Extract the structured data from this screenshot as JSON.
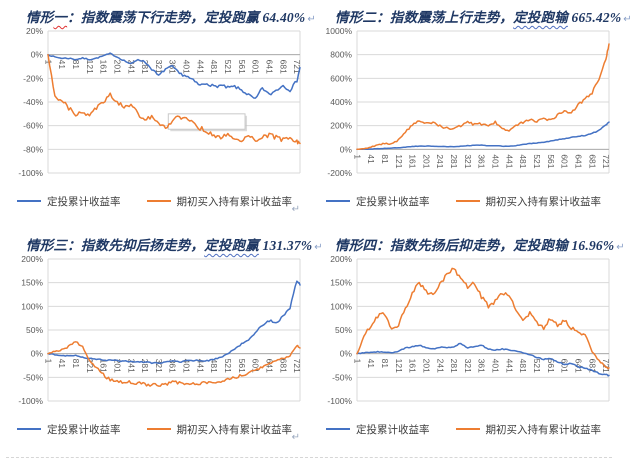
{
  "colors": {
    "dca": "#4472C4",
    "buyhold": "#ED7D31",
    "title": "#1F3864",
    "axis_text": "#595959",
    "grid": "#D9D9D9",
    "zero_axis": "#ADADAD"
  },
  "legend": {
    "series1": "定投累计收益率",
    "series2": "期初买入持有累计收益率",
    "return_mark": "↵"
  },
  "scenarios": [
    {
      "title_prefix": "情形",
      "title_marked": "一",
      "title_suffix": "：指数震荡下行走势，定投跑赢 64.40%",
      "outcome": "定投跑赢 64.40%"
    },
    {
      "title_prefix": "情形二：指数震荡上行走势，",
      "title_marked": "定投跑输",
      "title_suffix": " 665.42%",
      "outcome": "定投跑输 665.42%"
    },
    {
      "title_prefix": "情形三：指数先抑后扬走势，",
      "title_marked": "定投跑赢",
      "title_suffix": " 131.37%",
      "outcome": "定投跑赢 131.37%"
    },
    {
      "title_prefix": "情形四：指数先扬后抑走势，定投跑输 16.96%",
      "title_marked": "",
      "title_suffix": "",
      "outcome": "定投跑输 16.96%"
    }
  ],
  "chart_data": [
    {
      "type": "line",
      "title": "情形一：指数震荡下行走势",
      "ylim": [
        -100,
        20
      ],
      "y_step": 20,
      "y_tick_suffix": "%",
      "x_ticks": [
        1,
        41,
        81,
        121,
        161,
        201,
        241,
        281,
        321,
        361,
        401,
        441,
        481,
        521,
        561,
        601,
        641,
        681,
        721
      ],
      "x": [
        1,
        21,
        41,
        61,
        81,
        101,
        121,
        141,
        161,
        181,
        201,
        221,
        241,
        261,
        281,
        301,
        321,
        341,
        361,
        381,
        401,
        421,
        441,
        461,
        481,
        501,
        521,
        541,
        561,
        581,
        601,
        621,
        641,
        661,
        681,
        701,
        721,
        730
      ],
      "series": [
        {
          "name": "定投累计收益率",
          "color_key": "dca",
          "values": [
            0,
            -2,
            -3,
            -3,
            -4,
            -3,
            -4,
            -3,
            -1,
            1,
            -2,
            -5,
            -8,
            -4,
            -6,
            -12,
            -18,
            -12,
            -10,
            -16,
            -18,
            -22,
            -26,
            -24,
            -27,
            -26,
            -28,
            -27,
            -30,
            -34,
            -38,
            -28,
            -34,
            -30,
            -26,
            -30,
            -22,
            -11
          ]
        },
        {
          "name": "期初买入持有累计收益率",
          "color_key": "buyhold",
          "values": [
            0,
            -35,
            -38,
            -45,
            -50,
            -48,
            -52,
            -45,
            -40,
            -33,
            -40,
            -45,
            -42,
            -50,
            -55,
            -52,
            -58,
            -62,
            -55,
            -52,
            -55,
            -58,
            -62,
            -65,
            -68,
            -70,
            -68,
            -70,
            -72,
            -70,
            -72,
            -70,
            -68,
            -70,
            -72,
            -70,
            -74,
            -75
          ]
        }
      ],
      "annotation_box": {
        "x0": 349,
        "y0": -50,
        "x1": 571,
        "y1": -63
      },
      "grid": true,
      "legend_position": "bottom"
    },
    {
      "type": "line",
      "title": "情形二：指数震荡上行走势",
      "ylim": [
        -200,
        1000
      ],
      "y_step": 200,
      "y_tick_suffix": "%",
      "x_ticks": [
        1,
        41,
        81,
        121,
        161,
        201,
        241,
        281,
        321,
        361,
        401,
        441,
        481,
        521,
        561,
        601,
        641,
        681,
        721
      ],
      "x": [
        1,
        21,
        41,
        61,
        81,
        101,
        121,
        141,
        161,
        181,
        201,
        221,
        241,
        261,
        281,
        301,
        321,
        341,
        361,
        381,
        401,
        421,
        441,
        461,
        481,
        501,
        521,
        541,
        561,
        581,
        601,
        621,
        641,
        661,
        681,
        701,
        721,
        730
      ],
      "series": [
        {
          "name": "定投累计收益率",
          "color_key": "dca",
          "values": [
            0,
            1,
            3,
            5,
            8,
            10,
            14,
            18,
            24,
            27,
            28,
            26,
            25,
            23,
            22,
            26,
            32,
            34,
            35,
            30,
            30,
            27,
            25,
            32,
            42,
            48,
            55,
            60,
            70,
            80,
            90,
            100,
            110,
            118,
            135,
            160,
            205,
            230
          ]
        },
        {
          "name": "期初买入持有累计收益率",
          "color_key": "buyhold",
          "values": [
            0,
            5,
            18,
            38,
            50,
            45,
            80,
            150,
            205,
            235,
            215,
            222,
            196,
            180,
            172,
            200,
            228,
            210,
            215,
            192,
            228,
            182,
            158,
            198,
            228,
            258,
            232,
            258,
            242,
            292,
            330,
            305,
            375,
            428,
            475,
            600,
            760,
            890
          ]
        }
      ],
      "grid": true,
      "legend_position": "bottom"
    },
    {
      "type": "line",
      "title": "情形三：指数先抑后扬走势",
      "ylim": [
        -100,
        200
      ],
      "y_step": 50,
      "y_tick_suffix": "%",
      "x_ticks": [
        1,
        41,
        81,
        121,
        161,
        201,
        241,
        281,
        321,
        361,
        401,
        441,
        481,
        521,
        561,
        601,
        641,
        681,
        721
      ],
      "x": [
        1,
        21,
        41,
        61,
        81,
        101,
        121,
        141,
        161,
        181,
        201,
        221,
        241,
        261,
        281,
        301,
        321,
        341,
        361,
        381,
        401,
        421,
        441,
        461,
        481,
        501,
        521,
        541,
        561,
        581,
        601,
        621,
        641,
        661,
        681,
        701,
        721,
        730
      ],
      "series": [
        {
          "name": "定投累计收益率",
          "color_key": "dca",
          "values": [
            0,
            -2,
            -4,
            -5,
            -3,
            -8,
            -10,
            -12,
            -13,
            -14,
            -15,
            -16,
            -17,
            -18,
            -18,
            -20,
            -20,
            -18,
            -15,
            -18,
            -15,
            -15,
            -14,
            -15,
            -12,
            -8,
            0,
            10,
            20,
            30,
            45,
            60,
            70,
            65,
            78,
            95,
            155,
            145
          ]
        },
        {
          "name": "期初买入持有累计收益率",
          "color_key": "buyhold",
          "values": [
            0,
            5,
            8,
            15,
            25,
            15,
            -15,
            -30,
            -45,
            -55,
            -58,
            -60,
            -60,
            -62,
            -65,
            -65,
            -68,
            -65,
            -58,
            -62,
            -65,
            -65,
            -63,
            -62,
            -60,
            -58,
            -55,
            -50,
            -45,
            -40,
            -35,
            -28,
            -20,
            -15,
            -10,
            -5,
            18,
            12
          ]
        }
      ],
      "grid": true,
      "legend_position": "bottom"
    },
    {
      "type": "line",
      "title": "情形四：指数先扬后抑走势",
      "ylim": [
        -100,
        200
      ],
      "y_step": 50,
      "y_tick_suffix": "%",
      "x_ticks": [
        1,
        41,
        81,
        121,
        161,
        201,
        241,
        281,
        321,
        361,
        401,
        441,
        481,
        521,
        561,
        601,
        641,
        681,
        721
      ],
      "x": [
        1,
        21,
        41,
        61,
        81,
        101,
        121,
        141,
        161,
        181,
        201,
        221,
        241,
        261,
        281,
        301,
        321,
        341,
        361,
        381,
        401,
        421,
        441,
        461,
        481,
        501,
        521,
        541,
        561,
        581,
        601,
        621,
        641,
        661,
        681,
        701,
        721,
        730
      ],
      "series": [
        {
          "name": "定投累计收益率",
          "color_key": "dca",
          "values": [
            0,
            2,
            3,
            4,
            3,
            2,
            5,
            12,
            15,
            18,
            12,
            10,
            14,
            12,
            15,
            22,
            12,
            15,
            18,
            10,
            8,
            10,
            8,
            5,
            2,
            -2,
            -8,
            -12,
            -10,
            -18,
            -22,
            -20,
            -28,
            -30,
            -35,
            -42,
            -45,
            -46
          ]
        },
        {
          "name": "期初买入持有累计收益率",
          "color_key": "buyhold",
          "values": [
            0,
            35,
            60,
            80,
            85,
            50,
            60,
            95,
            130,
            150,
            130,
            125,
            150,
            165,
            180,
            160,
            140,
            150,
            120,
            100,
            110,
            128,
            125,
            95,
            70,
            85,
            65,
            55,
            75,
            60,
            70,
            55,
            45,
            40,
            5,
            -15,
            -28,
            -30
          ]
        }
      ],
      "grid": true,
      "legend_position": "bottom"
    }
  ]
}
